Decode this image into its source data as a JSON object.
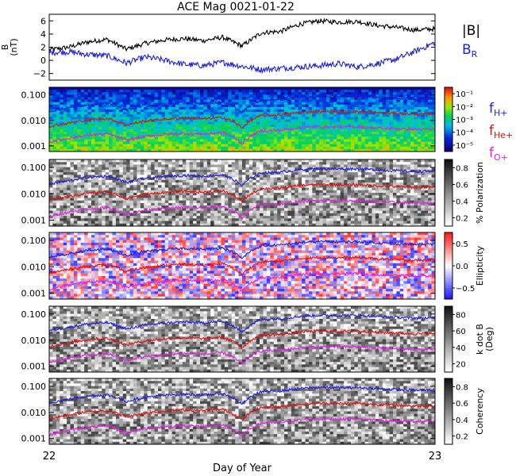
{
  "chart_data": {
    "type": "line",
    "title": "ACE Mag 0021-01-22",
    "xlabel": "Day of Year",
    "x_ticks": [
      "22",
      "23"
    ],
    "xlim": [
      22,
      23
    ],
    "panels": [
      {
        "kind": "line",
        "ylabel": "B\n(nT)",
        "ylim": [
          -3,
          7
        ],
        "y_ticks": [
          "6",
          "4",
          "2",
          "0",
          "−2"
        ],
        "y_tick_values": [
          6,
          4,
          2,
          0,
          -2
        ],
        "series": [
          {
            "name": "|B|",
            "color": "#000000",
            "x": [
              22.0,
              22.05,
              22.1,
              22.15,
              22.2,
              22.25,
              22.3,
              22.35,
              22.4,
              22.45,
              22.5,
              22.55,
              22.6,
              22.65,
              22.7,
              22.75,
              22.8,
              22.85,
              22.9,
              22.95,
              23.0
            ],
            "y": [
              1.6,
              2.0,
              2.8,
              3.2,
              1.7,
              2.6,
              3.1,
              3.3,
              3.0,
              3.5,
              2.2,
              4.2,
              4.4,
              5.5,
              6.0,
              5.8,
              5.9,
              5.3,
              5.0,
              4.6,
              4.8
            ]
          },
          {
            "name": "B",
            "sub": "R",
            "color": "#1f1fd6",
            "x": [
              22.0,
              22.05,
              22.1,
              22.15,
              22.2,
              22.25,
              22.3,
              22.35,
              22.4,
              22.45,
              22.5,
              22.55,
              22.6,
              22.65,
              22.7,
              22.75,
              22.8,
              22.85,
              22.9,
              22.95,
              23.0
            ],
            "y": [
              1.2,
              1.3,
              0.9,
              0.7,
              -0.4,
              0.5,
              0.0,
              -0.6,
              -0.8,
              -0.3,
              -0.9,
              -1.4,
              -1.2,
              -1.0,
              -0.8,
              -0.5,
              -1.0,
              -0.5,
              0.2,
              1.4,
              2.7
            ]
          }
        ]
      },
      {
        "kind": "spectrogram",
        "colorbar": {
          "label": "",
          "ticks": [
            "10⁻¹",
            "10⁻²",
            "10⁻³",
            "10⁻⁴",
            "10⁻⁵"
          ]
        },
        "legend": [
          {
            "name": "f",
            "sub": "H+",
            "color": "#1f1fd6"
          },
          {
            "name": "f",
            "sub": "He+",
            "color": "#e01010"
          },
          {
            "name": "f",
            "sub": "O+",
            "color": "#e020e0"
          }
        ]
      },
      {
        "kind": "spectrogram",
        "colorbar": {
          "label": "% Polarization",
          "ticks": [
            "0.8",
            "0.6",
            "0.4",
            "0.2"
          ]
        }
      },
      {
        "kind": "spectrogram",
        "colorbar": {
          "label": "Ellipticity",
          "ticks": [
            "0.5",
            "0.0",
            "−0.5"
          ]
        }
      },
      {
        "kind": "spectrogram",
        "colorbar": {
          "label": "k dot B\n(Deg)",
          "ticks": [
            "80",
            "60",
            "40",
            "20"
          ]
        }
      },
      {
        "kind": "spectrogram",
        "colorbar": {
          "label": "Coherency",
          "ticks": [
            "0.8",
            "0.6",
            "0.4",
            "0.2"
          ]
        }
      }
    ],
    "spectrogram_axis": {
      "ylim": [
        0.0006,
        0.2
      ],
      "y_ticks": [
        "0.100",
        "0.010",
        "0.001"
      ],
      "y_tick_values": [
        0.1,
        0.01,
        0.001
      ],
      "log_scale": true
    },
    "gyrofrequency_series": [
      {
        "name": "f",
        "sub": "H+",
        "color": "#1f1fd6",
        "x": [
          22.0,
          22.05,
          22.1,
          22.15,
          22.2,
          22.25,
          22.3,
          22.35,
          22.4,
          22.45,
          22.5,
          22.55,
          22.6,
          22.65,
          22.7,
          22.75,
          22.8,
          22.85,
          22.9,
          22.95,
          23.0
        ],
        "y": [
          0.023,
          0.031,
          0.042,
          0.047,
          0.026,
          0.038,
          0.045,
          0.05,
          0.046,
          0.052,
          0.02,
          0.062,
          0.066,
          0.082,
          0.09,
          0.088,
          0.089,
          0.08,
          0.075,
          0.07,
          0.072
        ]
      },
      {
        "name": "f",
        "sub": "He+",
        "color": "#e01010",
        "x": [
          22.0,
          22.05,
          22.1,
          22.15,
          22.2,
          22.25,
          22.3,
          22.35,
          22.4,
          22.45,
          22.5,
          22.55,
          22.6,
          22.65,
          22.7,
          22.75,
          22.8,
          22.85,
          22.9,
          22.95,
          23.0
        ],
        "y": [
          0.0058,
          0.0078,
          0.0105,
          0.0118,
          0.0065,
          0.0095,
          0.0112,
          0.0125,
          0.0115,
          0.013,
          0.005,
          0.0155,
          0.0165,
          0.0205,
          0.0225,
          0.022,
          0.0222,
          0.02,
          0.0188,
          0.0175,
          0.018
        ]
      },
      {
        "name": "f",
        "sub": "O+",
        "color": "#e020e0",
        "x": [
          22.0,
          22.05,
          22.1,
          22.15,
          22.2,
          22.25,
          22.3,
          22.35,
          22.4,
          22.45,
          22.5,
          22.55,
          22.6,
          22.65,
          22.7,
          22.75,
          22.8,
          22.85,
          22.9,
          22.95,
          23.0
        ],
        "y": [
          0.0014,
          0.002,
          0.0026,
          0.003,
          0.0016,
          0.0024,
          0.0028,
          0.0031,
          0.0029,
          0.0033,
          0.0012,
          0.0039,
          0.0041,
          0.0051,
          0.0056,
          0.0055,
          0.0056,
          0.005,
          0.0047,
          0.0044,
          0.0045
        ]
      }
    ],
    "grid": false
  }
}
